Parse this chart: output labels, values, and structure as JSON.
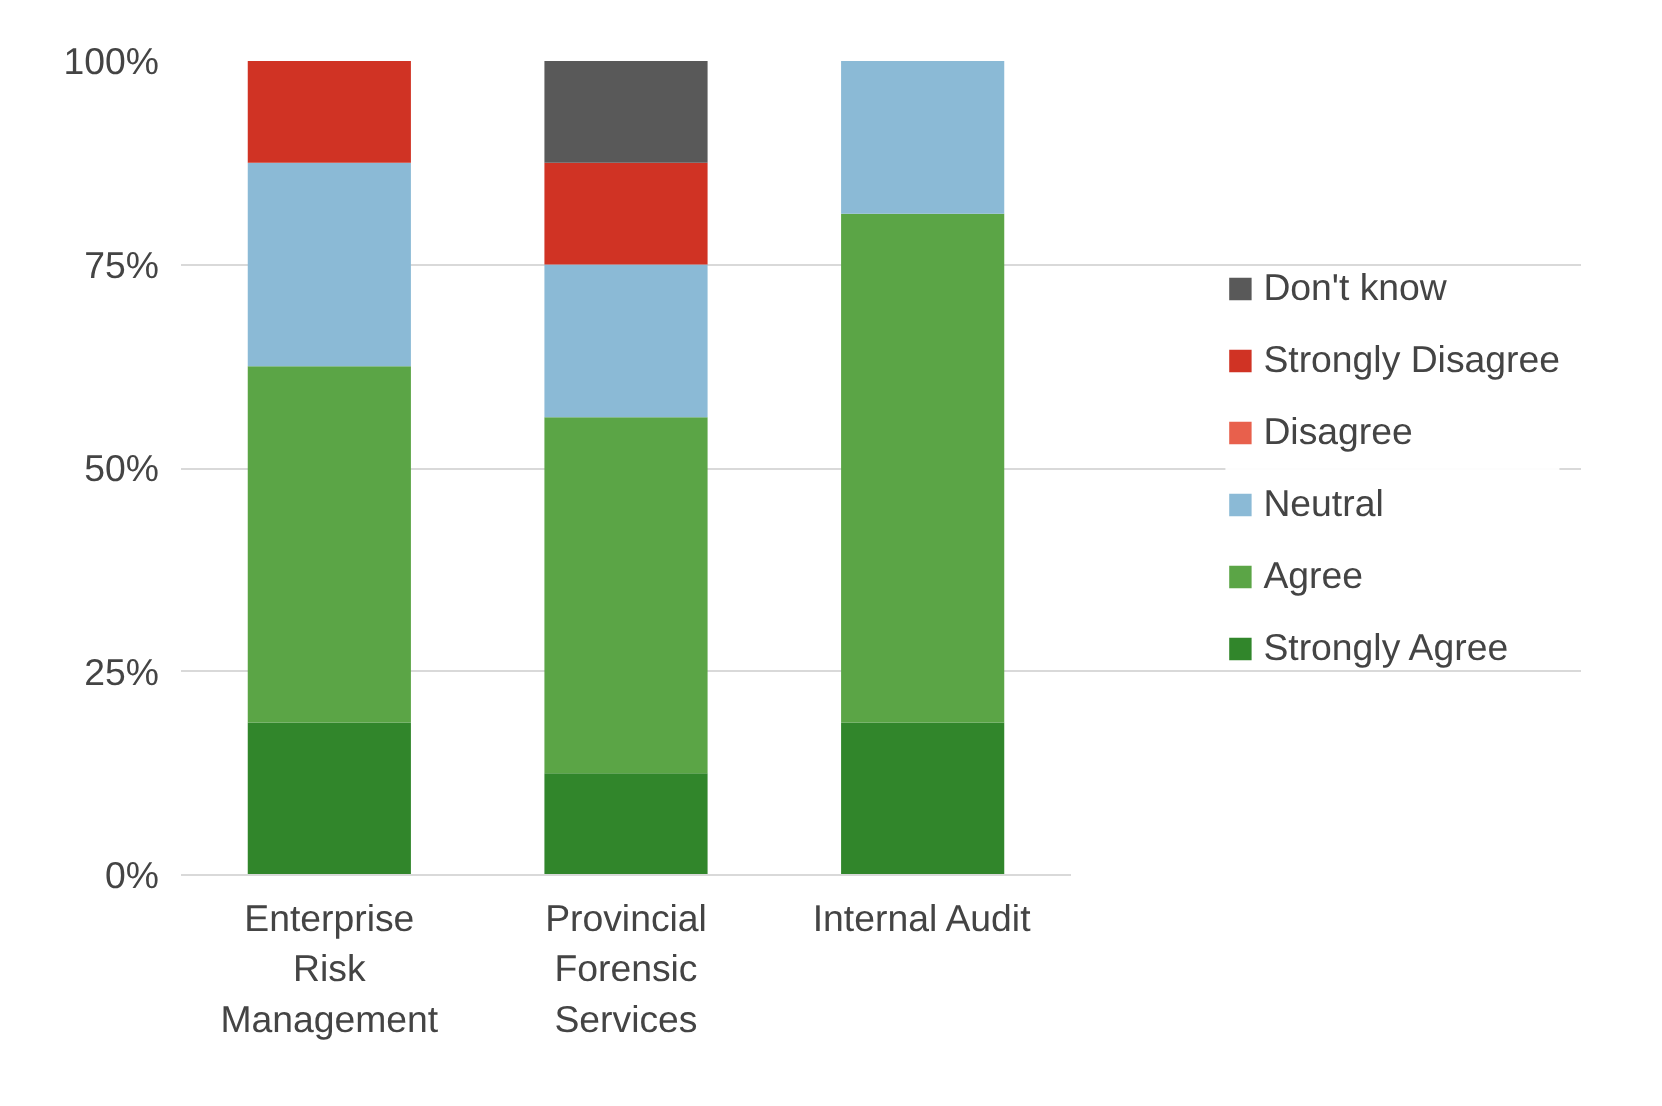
{
  "chart_data": {
    "type": "bar",
    "stacked": true,
    "categories": [
      "Enterprise Risk Management",
      "Provincial Forensic Services",
      "Internal Audit"
    ],
    "series": [
      {
        "name": "Strongly Agree",
        "color": "#31862b",
        "values": [
          18.75,
          12.5,
          18.75
        ]
      },
      {
        "name": "Agree",
        "color": "#5ba546",
        "values": [
          43.75,
          43.75,
          62.5
        ]
      },
      {
        "name": "Neutral",
        "color": "#8bbad6",
        "values": [
          25,
          18.75,
          18.75
        ]
      },
      {
        "name": "Disagree",
        "color": "#e8604c",
        "values": [
          0,
          0,
          0
        ]
      },
      {
        "name": "Strongly Disagree",
        "color": "#d03324",
        "values": [
          12.5,
          12.5,
          0
        ]
      },
      {
        "name": "Don't know",
        "color": "#595959",
        "values": [
          0,
          12.5,
          0
        ]
      }
    ],
    "ylim": [
      0,
      100
    ],
    "yticks": [
      {
        "value": 0,
        "label": "0%"
      },
      {
        "value": 25,
        "label": "25%"
      },
      {
        "value": 50,
        "label": "50%"
      },
      {
        "value": 75,
        "label": "75%"
      },
      {
        "value": 100,
        "label": "100%"
      }
    ],
    "grid": "y",
    "legend": "right"
  }
}
